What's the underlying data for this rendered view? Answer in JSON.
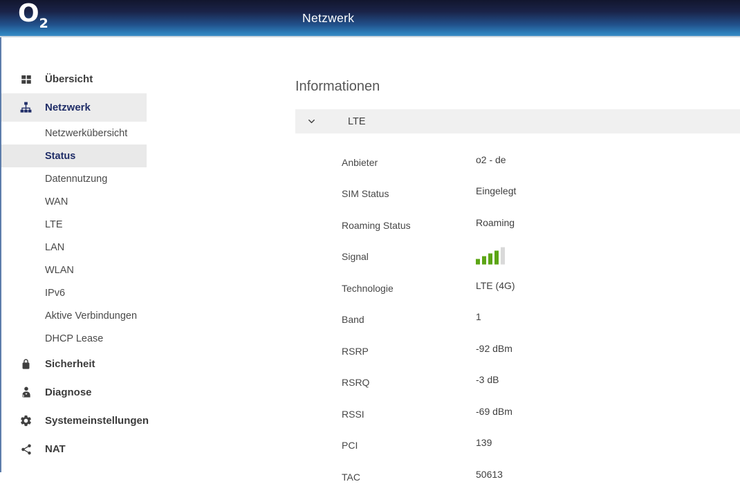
{
  "header": {
    "logo_main": "O",
    "logo_sub": "2",
    "title": "Netzwerk"
  },
  "sidebar": {
    "items": [
      {
        "label": "Übersicht",
        "icon": "dashboard",
        "type": "top",
        "active": false
      },
      {
        "label": "Netzwerk",
        "icon": "sitemap",
        "type": "top",
        "active": true
      },
      {
        "label": "Netzwerkübersicht",
        "type": "sub",
        "active": false
      },
      {
        "label": "Status",
        "type": "sub",
        "active": true
      },
      {
        "label": "Datennutzung",
        "type": "sub",
        "active": false
      },
      {
        "label": "WAN",
        "type": "sub",
        "active": false
      },
      {
        "label": "LTE",
        "type": "sub",
        "active": false
      },
      {
        "label": "LAN",
        "type": "sub",
        "active": false
      },
      {
        "label": "WLAN",
        "type": "sub",
        "active": false
      },
      {
        "label": "IPv6",
        "type": "sub",
        "active": false
      },
      {
        "label": "Aktive Verbindungen",
        "type": "sub",
        "active": false
      },
      {
        "label": "DHCP Lease",
        "type": "sub",
        "active": false
      },
      {
        "label": "Sicherheit",
        "icon": "lock",
        "type": "top",
        "active": false
      },
      {
        "label": "Diagnose",
        "icon": "doctor",
        "type": "top",
        "active": false
      },
      {
        "label": "Systemeinstellungen",
        "icon": "gear",
        "type": "top",
        "active": false
      },
      {
        "label": "NAT",
        "icon": "share",
        "type": "top",
        "active": false
      }
    ]
  },
  "main": {
    "heading": "Informationen",
    "accordion": {
      "label": "LTE",
      "expanded": true,
      "chevron_icon": "chevron-down-icon"
    },
    "rows": [
      {
        "label": "Anbieter",
        "value": "o2 - de"
      },
      {
        "label": "SIM Status",
        "value": "Eingelegt"
      },
      {
        "label": "Roaming Status",
        "value": "Roaming"
      },
      {
        "label": "Signal",
        "value": "4 of 5 bars",
        "signal": {
          "bars_total": 5,
          "bars_active": 4
        }
      },
      {
        "label": "Technologie",
        "value": "LTE (4G)"
      },
      {
        "label": "Band",
        "value": "1"
      },
      {
        "label": "RSRP",
        "value": "-92 dBm"
      },
      {
        "label": "RSRQ",
        "value": "-3 dB"
      },
      {
        "label": "RSSI",
        "value": "-69 dBm"
      },
      {
        "label": "PCI",
        "value": "139"
      },
      {
        "label": "TAC",
        "value": "50613"
      }
    ]
  },
  "colors": {
    "header_gradient_top": "#12162e",
    "header_gradient_bottom": "#3b8cc4",
    "accent_navy": "#202e68",
    "active_item_bg": "#ececec",
    "accordion_bg": "#f0f0f0",
    "signal_green": "#5ca515",
    "signal_inactive_gray": "#d9d9d9",
    "left_border_blue": "#5d7dab"
  }
}
